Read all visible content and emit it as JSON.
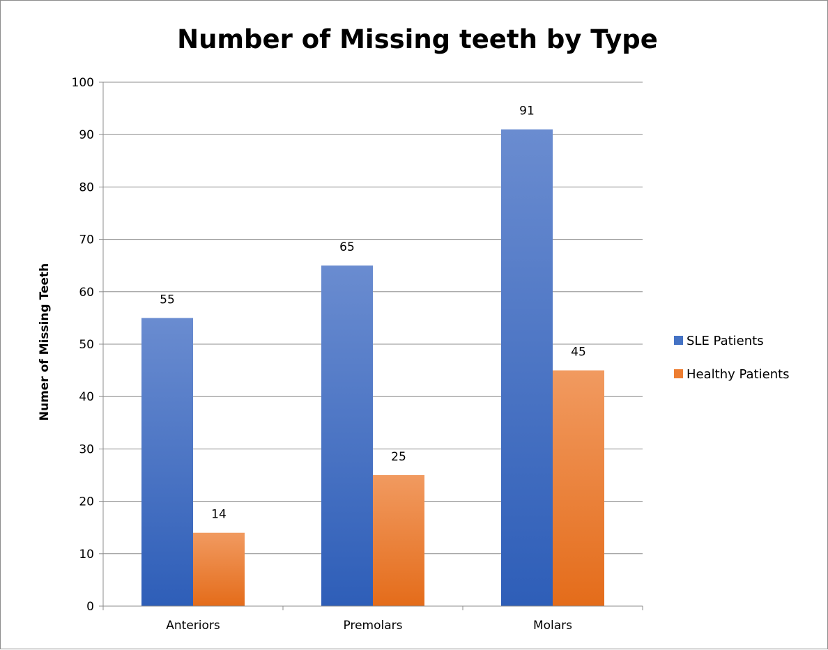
{
  "chart_data": {
    "type": "bar",
    "title": "Number of Missing teeth by Type",
    "xlabel": "",
    "ylabel": "Numer of Missing Teeth",
    "categories": [
      "Anteriors",
      "Premolars",
      "Molars"
    ],
    "series": [
      {
        "name": "SLE Patients",
        "values": [
          55,
          65,
          91
        ],
        "color": "#4472C4"
      },
      {
        "name": "Healthy Patients",
        "values": [
          14,
          25,
          45
        ],
        "color": "#ED7D31"
      }
    ],
    "ylim": [
      0,
      100
    ],
    "yticks": [
      0,
      10,
      20,
      30,
      40,
      50,
      60,
      70,
      80,
      90,
      100
    ],
    "grid": true,
    "legend_position": "right",
    "data_labels": true
  }
}
